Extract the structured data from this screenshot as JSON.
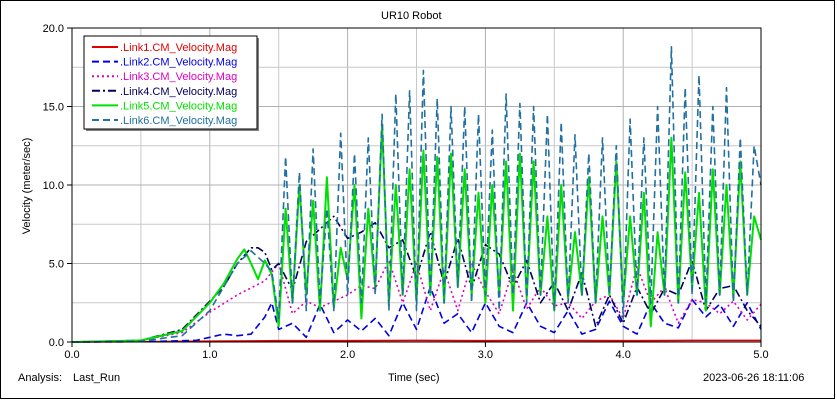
{
  "footer": {
    "analysis_label": "Analysis:",
    "analysis_value": "Last_Run",
    "timestamp": "2023-06-26 18:11:06"
  },
  "chart_data": {
    "type": "line",
    "title": "UR10 Robot",
    "xlabel": "Time (sec)",
    "ylabel": "Velocity (meter/sec)",
    "xlim": [
      0.0,
      5.0
    ],
    "ylim": [
      0.0,
      20.0
    ],
    "xticks": [
      "0.0",
      "1.0",
      "2.0",
      "3.0",
      "4.0",
      "5.0"
    ],
    "yticks": [
      "0.0",
      "5.0",
      "10.0",
      "15.0",
      "20.0"
    ],
    "grid": true,
    "legend_position": "top-left",
    "series": [
      {
        "name": ".Link1.CM_Velocity.Mag",
        "color": "#e00000",
        "dash": "solid",
        "x": [
          0,
          0.5,
          1.0,
          1.5,
          2.0,
          2.5,
          3.0,
          3.5,
          4.0,
          4.5,
          5.0
        ],
        "y": [
          0.0,
          0.02,
          0.05,
          0.08,
          0.08,
          0.1,
          0.08,
          0.1,
          0.08,
          0.1,
          0.1
        ]
      },
      {
        "name": ".Link2.CM_Velocity.Mag",
        "color": "#0000e0",
        "dash": "dashed",
        "x": [
          0,
          0.5,
          0.9,
          1.0,
          1.1,
          1.2,
          1.3,
          1.4,
          1.45,
          1.5,
          1.6,
          1.7,
          1.8,
          1.9,
          2.0,
          2.1,
          2.2,
          2.3,
          2.4,
          2.5,
          2.6,
          2.7,
          2.8,
          2.9,
          3.0,
          3.1,
          3.2,
          3.3,
          3.4,
          3.5,
          3.6,
          3.7,
          3.8,
          3.9,
          4.0,
          4.1,
          4.2,
          4.3,
          4.4,
          4.5,
          4.6,
          4.7,
          4.8,
          4.9,
          5.0
        ],
        "y": [
          0.0,
          0.02,
          0.1,
          0.3,
          0.5,
          0.4,
          0.5,
          1.6,
          2.5,
          0.8,
          1.2,
          0.3,
          2.4,
          0.6,
          1.4,
          0.7,
          1.5,
          0.4,
          2.5,
          0.8,
          3.5,
          1.2,
          1.8,
          0.6,
          2.5,
          1.0,
          0.6,
          2.5,
          1.0,
          0.6,
          2.0,
          0.5,
          0.8,
          2.6,
          1.0,
          0.5,
          2.5,
          1.2,
          0.9,
          2.7,
          1.6,
          2.4,
          1.0,
          2.5,
          0.8
        ]
      },
      {
        "name": ".Link3.CM_Velocity.Mag",
        "color": "#e000c0",
        "dash": "dotted",
        "x": [
          0,
          0.5,
          0.8,
          1.0,
          1.2,
          1.4,
          1.5,
          1.6,
          1.7,
          1.8,
          1.9,
          2.0,
          2.1,
          2.2,
          2.3,
          2.4,
          2.5,
          2.6,
          2.7,
          2.8,
          2.9,
          3.0,
          3.1,
          3.2,
          3.3,
          3.4,
          3.5,
          3.6,
          3.7,
          3.8,
          3.9,
          4.0,
          4.1,
          4.2,
          4.3,
          4.4,
          4.5,
          4.6,
          4.7,
          4.8,
          4.9,
          5.0
        ],
        "y": [
          0.0,
          0.1,
          0.6,
          1.9,
          3.0,
          3.9,
          5.0,
          1.8,
          2.6,
          2.2,
          2.6,
          3.0,
          3.6,
          3.4,
          5.2,
          2.5,
          5.0,
          2.0,
          4.6,
          2.0,
          5.0,
          3.2,
          1.8,
          4.6,
          2.1,
          3.5,
          2.3,
          2.5,
          1.5,
          2.6,
          3.0,
          1.5,
          4.8,
          2.5,
          3.5,
          1.2,
          2.7,
          2.5,
          1.8,
          2.6,
          1.4,
          2.4
        ]
      },
      {
        "name": ".Link4.CM_Velocity.Mag",
        "color": "#000060",
        "dash": "dashdot",
        "x": [
          0,
          0.5,
          0.8,
          1.0,
          1.1,
          1.2,
          1.3,
          1.35,
          1.4,
          1.45,
          1.5,
          1.6,
          1.7,
          1.8,
          1.9,
          2.0,
          2.1,
          2.2,
          2.3,
          2.4,
          2.5,
          2.6,
          2.7,
          2.8,
          2.9,
          3.0,
          3.1,
          3.2,
          3.3,
          3.4,
          3.5,
          3.6,
          3.7,
          3.8,
          3.9,
          4.0,
          4.1,
          4.2,
          4.3,
          4.4,
          4.5,
          4.6,
          4.7,
          4.8,
          4.9,
          5.0
        ],
        "y": [
          0.0,
          0.1,
          0.8,
          2.6,
          3.5,
          5.0,
          6.0,
          6.0,
          5.7,
          4.6,
          5.0,
          3.3,
          6.4,
          7.2,
          8.0,
          6.6,
          7.0,
          7.6,
          6.0,
          6.5,
          4.1,
          7.0,
          3.7,
          6.6,
          3.4,
          6.2,
          5.6,
          3.5,
          5.2,
          2.5,
          3.8,
          2.0,
          4.4,
          1.0,
          3.0,
          1.2,
          3.5,
          1.8,
          3.4,
          3.0,
          5.2,
          2.0,
          3.4,
          3.6,
          2.0,
          1.0
        ]
      },
      {
        "name": ".Link5.CM_Velocity.Mag",
        "color": "#00e000",
        "dash": "solid",
        "x": [
          0,
          0.5,
          0.8,
          1.0,
          1.1,
          1.2,
          1.25,
          1.3,
          1.35,
          1.4,
          1.45,
          1.5,
          1.55,
          1.6,
          1.65,
          1.7,
          1.75,
          1.8,
          1.85,
          1.9,
          1.95,
          2.0,
          2.05,
          2.1,
          2.15,
          2.2,
          2.25,
          2.3,
          2.35,
          2.4,
          2.45,
          2.5,
          2.55,
          2.6,
          2.65,
          2.7,
          2.75,
          2.8,
          2.85,
          2.9,
          2.95,
          3.0,
          3.05,
          3.1,
          3.15,
          3.2,
          3.25,
          3.3,
          3.35,
          3.4,
          3.45,
          3.5,
          3.55,
          3.6,
          3.65,
          3.7,
          3.75,
          3.8,
          3.85,
          3.9,
          3.95,
          4.0,
          4.05,
          4.1,
          4.15,
          4.2,
          4.25,
          4.3,
          4.35,
          4.4,
          4.45,
          4.5,
          4.55,
          4.6,
          4.65,
          4.7,
          4.75,
          4.8,
          4.85,
          4.9,
          4.95,
          5.0
        ],
        "y": [
          0.0,
          0.1,
          0.7,
          2.5,
          3.7,
          5.3,
          5.9,
          5.0,
          4.0,
          5.2,
          4.3,
          1.0,
          8.5,
          2.5,
          10.0,
          3.0,
          9.0,
          2.0,
          10.5,
          2.2,
          6.0,
          4.0,
          10.0,
          1.5,
          8.5,
          3.5,
          13.8,
          2.5,
          10.0,
          3.0,
          11.0,
          2.6,
          12.2,
          3.0,
          11.8,
          2.5,
          12.0,
          3.5,
          11.0,
          3.0,
          9.5,
          2.5,
          10.0,
          3.0,
          11.5,
          2.0,
          12.0,
          2.8,
          11.5,
          3.0,
          8.0,
          2.0,
          10.0,
          2.8,
          7.0,
          3.0,
          10.5,
          2.5,
          8.0,
          3.0,
          11.5,
          2.5,
          8.0,
          3.0,
          9.5,
          1.0,
          7.0,
          3.0,
          13.0,
          2.5,
          10.8,
          3.5,
          9.5,
          2.0,
          11.0,
          3.0,
          10.0,
          2.8,
          11.5,
          3.0,
          8.0,
          6.5
        ]
      },
      {
        "name": ".Link6.CM_Velocity.Mag",
        "color": "#2070a0",
        "dash": "dashed",
        "x": [
          0,
          0.5,
          0.8,
          1.0,
          1.1,
          1.2,
          1.3,
          1.4,
          1.45,
          1.5,
          1.55,
          1.6,
          1.65,
          1.7,
          1.75,
          1.8,
          1.85,
          1.9,
          1.95,
          2.0,
          2.05,
          2.1,
          2.15,
          2.2,
          2.25,
          2.3,
          2.35,
          2.4,
          2.45,
          2.5,
          2.55,
          2.6,
          2.65,
          2.7,
          2.75,
          2.8,
          2.85,
          2.9,
          2.95,
          3.0,
          3.05,
          3.1,
          3.15,
          3.2,
          3.25,
          3.3,
          3.35,
          3.4,
          3.45,
          3.5,
          3.55,
          3.6,
          3.65,
          3.7,
          3.75,
          3.8,
          3.85,
          3.9,
          3.95,
          4.0,
          4.05,
          4.1,
          4.15,
          4.2,
          4.25,
          4.3,
          4.35,
          4.4,
          4.45,
          4.5,
          4.55,
          4.6,
          4.65,
          4.7,
          4.75,
          4.8,
          4.85,
          4.9,
          4.95,
          5.0
        ],
        "y": [
          0.0,
          0.05,
          0.4,
          2.0,
          3.5,
          5.0,
          5.8,
          5.0,
          4.5,
          1.5,
          11.8,
          2.5,
          10.8,
          2.0,
          12.3,
          2.5,
          8.5,
          2.0,
          13.3,
          3.0,
          12.0,
          2.5,
          13.0,
          3.0,
          14.5,
          2.0,
          15.8,
          3.0,
          16.0,
          2.0,
          17.3,
          3.0,
          15.5,
          2.5,
          15.0,
          3.5,
          15.0,
          2.5,
          14.5,
          3.0,
          13.5,
          2.0,
          15.8,
          3.0,
          15.2,
          2.5,
          15.0,
          3.0,
          14.5,
          2.0,
          14.0,
          2.5,
          13.2,
          3.0,
          12.0,
          2.5,
          13.0,
          3.0,
          12.5,
          1.5,
          14.2,
          3.0,
          13.0,
          2.5,
          15.0,
          3.0,
          18.8,
          2.5,
          16.2,
          3.0,
          17.0,
          2.5,
          15.0,
          3.0,
          16.2,
          2.5,
          13.0,
          3.0,
          12.5,
          10.0
        ]
      }
    ]
  }
}
